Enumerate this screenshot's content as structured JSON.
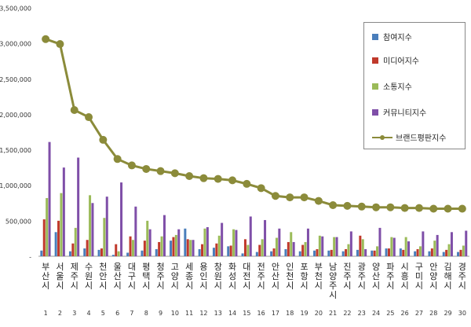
{
  "chart_data": {
    "type": "bar",
    "categories": [
      "부산시",
      "서울시",
      "제주시",
      "수원시",
      "천안시",
      "울산시",
      "대구시",
      "평택시",
      "청주시",
      "고양시",
      "세종시",
      "용인시",
      "창원시",
      "화성시",
      "대전시",
      "전주시",
      "안산시",
      "인천시",
      "포항시",
      "부천시",
      "남양주시",
      "진주시",
      "광주시",
      "양산시",
      "파주시",
      "시흥시",
      "구미시",
      "안양시",
      "김해시",
      "경주시"
    ],
    "ranks": [
      "1",
      "2",
      "3",
      "4",
      "5",
      "6",
      "7",
      "8",
      "9",
      "10",
      "11",
      "12",
      "13",
      "14",
      "15",
      "16",
      "17",
      "18",
      "19",
      "20",
      "21",
      "22",
      "23",
      "24",
      "25",
      "26",
      "27",
      "28",
      "29",
      "30"
    ],
    "series": [
      {
        "name": "참여지수",
        "color": "#4a7ebb",
        "values": [
          80000,
          340000,
          70000,
          110000,
          90000,
          20000,
          50000,
          80000,
          100000,
          220000,
          390000,
          100000,
          120000,
          140000,
          40000,
          60000,
          70000,
          100000,
          70000,
          80000,
          80000,
          70000,
          90000,
          80000,
          110000,
          110000,
          70000,
          70000,
          60000,
          60000
        ]
      },
      {
        "name": "미디어지수",
        "color": "#c0392b",
        "values": [
          520000,
          500000,
          180000,
          230000,
          110000,
          170000,
          280000,
          220000,
          200000,
          270000,
          240000,
          170000,
          180000,
          150000,
          240000,
          160000,
          110000,
          200000,
          160000,
          100000,
          90000,
          100000,
          290000,
          80000,
          110000,
          90000,
          100000,
          110000,
          90000,
          90000
        ]
      },
      {
        "name": "소통지수",
        "color": "#9bbb59",
        "values": [
          820000,
          890000,
          400000,
          860000,
          540000,
          70000,
          230000,
          500000,
          280000,
          300000,
          230000,
          390000,
          290000,
          380000,
          160000,
          240000,
          260000,
          340000,
          200000,
          290000,
          270000,
          170000,
          240000,
          140000,
          270000,
          270000,
          140000,
          220000,
          170000,
          150000
        ]
      },
      {
        "name": "커뮤니티지수",
        "color": "#7f4fa8",
        "values": [
          1610000,
          1250000,
          1390000,
          750000,
          840000,
          1040000,
          700000,
          380000,
          580000,
          380000,
          230000,
          410000,
          470000,
          370000,
          560000,
          510000,
          390000,
          200000,
          390000,
          280000,
          270000,
          350000,
          100000,
          400000,
          260000,
          210000,
          350000,
          300000,
          340000,
          360000
        ]
      },
      {
        "name": "브랜드평판지수",
        "color": "#8b8b3a",
        "type": "line",
        "values": [
          3060000,
          2990000,
          2060000,
          1960000,
          1640000,
          1370000,
          1280000,
          1230000,
          1200000,
          1170000,
          1130000,
          1100000,
          1090000,
          1070000,
          1020000,
          960000,
          850000,
          830000,
          830000,
          780000,
          720000,
          710000,
          700000,
          690000,
          690000,
          680000,
          680000,
          670000,
          670000,
          670000
        ]
      }
    ],
    "yticks": [
      "-",
      "500,000",
      "1,000,000",
      "1,500,000",
      "2,000,000",
      "2,500,000",
      "3,000,000",
      "3,500,000"
    ],
    "ylim": [
      0,
      3500000
    ],
    "xlabel": "",
    "ylabel": "",
    "title": "",
    "legend_position": "top-right",
    "grid": false
  }
}
